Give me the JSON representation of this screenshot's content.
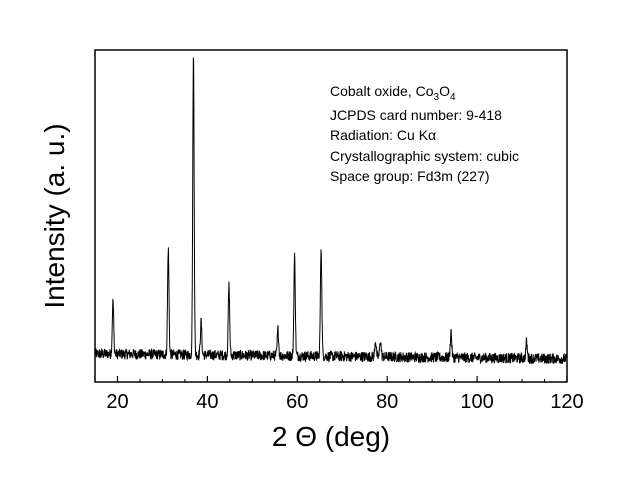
{
  "chart_data": {
    "type": "line",
    "xlabel": "2 Θ (deg)",
    "ylabel": "Intensity (a. u.)",
    "xlim": [
      15,
      120
    ],
    "ylim": [
      0,
      100
    ],
    "xticks": [
      20,
      40,
      60,
      80,
      100,
      120
    ],
    "y_tick_labels": false,
    "grid": false,
    "legend": "none",
    "line_color": "#000000",
    "series": [
      {
        "baseline": 7,
        "noise_amplitude": 1.6,
        "baseline_tilt": 1.5,
        "peaks": [
          {
            "x": 19.0,
            "height": 16
          },
          {
            "x": 31.3,
            "height": 32
          },
          {
            "x": 36.9,
            "height": 90
          },
          {
            "x": 38.6,
            "height": 10
          },
          {
            "x": 44.8,
            "height": 21
          },
          {
            "x": 55.7,
            "height": 8
          },
          {
            "x": 59.4,
            "height": 30
          },
          {
            "x": 65.3,
            "height": 33
          },
          {
            "x": 77.4,
            "height": 5
          },
          {
            "x": 78.5,
            "height": 5
          },
          {
            "x": 94.2,
            "height": 8
          },
          {
            "x": 111.0,
            "height": 5
          }
        ]
      }
    ],
    "annotations": [
      {
        "text": "Cobalt oxide, Co",
        "sub1": "3",
        "mid": "O",
        "sub2": "4"
      },
      {
        "text": "JCPDS card number: 9-418"
      },
      {
        "text": "Radiation: Cu Kα"
      },
      {
        "text": "Crystallographic system: cubic"
      },
      {
        "text": "Space group: Fd3m (227)"
      }
    ]
  }
}
